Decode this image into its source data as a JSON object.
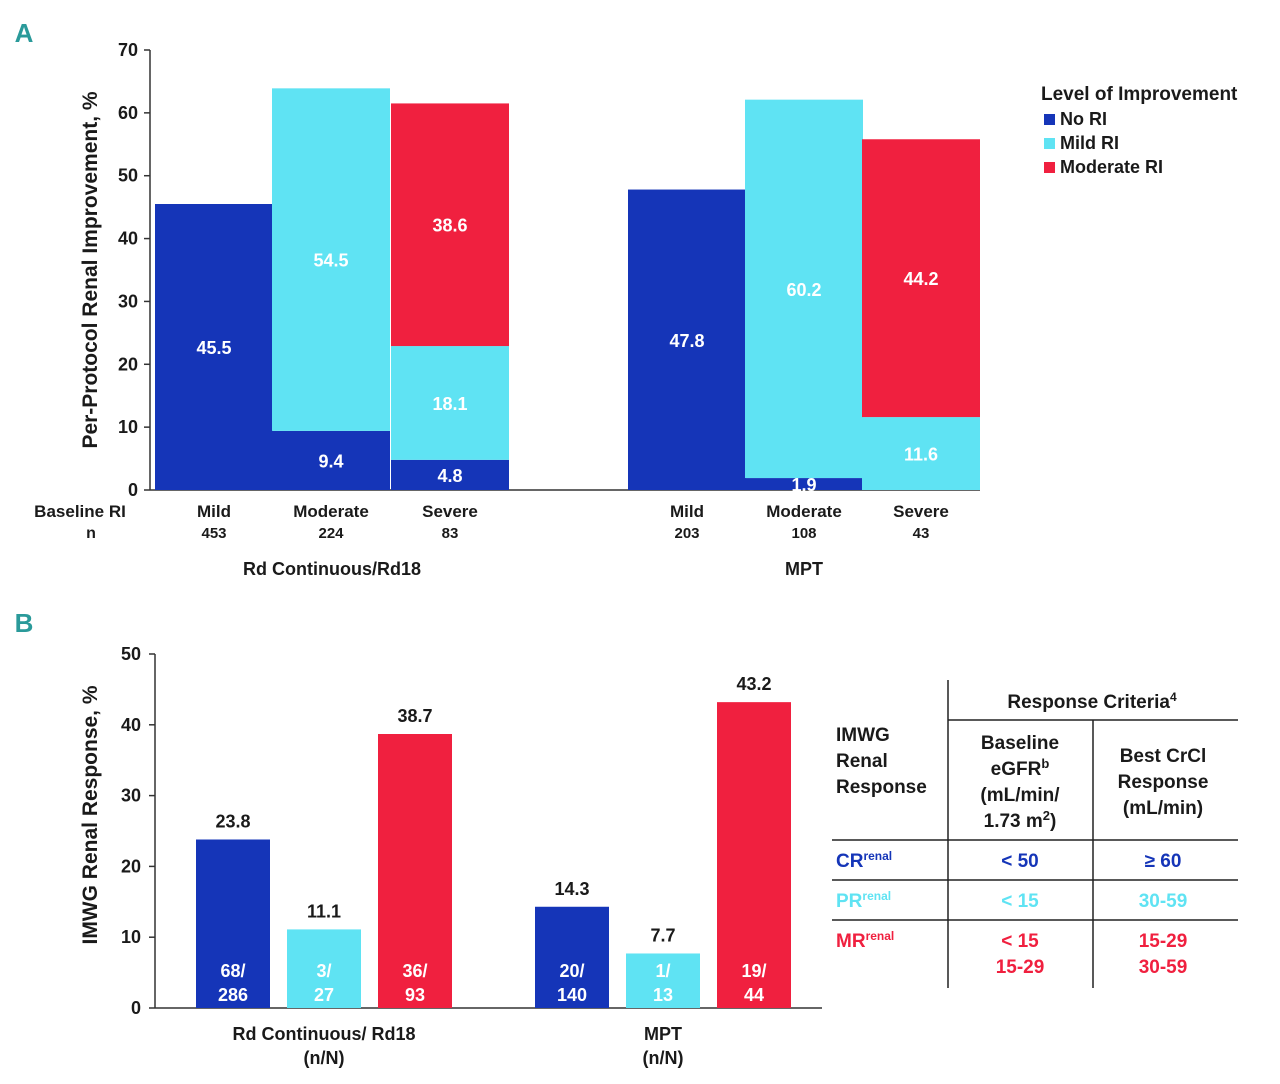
{
  "colors": {
    "no_ri": "#1535b8",
    "mild_ri": "#5fe3f3",
    "moderate_ri": "#f0203f",
    "panel_label": "#2a9a9a",
    "axis": "#333333"
  },
  "chart_data": [
    {
      "panel_label": "A",
      "type": "bar",
      "stacked": true,
      "ylabel": "Per-Protocol Renal Improvement, %",
      "ylim": [
        0,
        70
      ],
      "yticks": [
        "0",
        "10",
        "20",
        "30",
        "40",
        "50",
        "60",
        "70"
      ],
      "row_labels": {
        "baseline": "Baseline RI",
        "n": "n"
      },
      "legend": {
        "title": "Level of Improvement",
        "items": [
          "No RI",
          "Mild RI",
          "Moderate RI"
        ],
        "position": "top-right"
      },
      "groups": [
        {
          "name": "Rd Continuous/Rd18",
          "bars": [
            {
              "category": "Mild",
              "n": "453",
              "segments": [
                {
                  "series": "No RI",
                  "value": 45.5,
                  "label": "45.5"
                }
              ]
            },
            {
              "category": "Moderate",
              "n": "224",
              "segments": [
                {
                  "series": "No RI",
                  "value": 9.4,
                  "label": "9.4"
                },
                {
                  "series": "Mild RI",
                  "value": 54.5,
                  "label": "54.5"
                }
              ]
            },
            {
              "category": "Severe",
              "n": "83",
              "segments": [
                {
                  "series": "No RI",
                  "value": 4.8,
                  "label": "4.8"
                },
                {
                  "series": "Mild RI",
                  "value": 18.1,
                  "label": "18.1"
                },
                {
                  "series": "Moderate RI",
                  "value": 38.6,
                  "label": "38.6"
                }
              ]
            }
          ]
        },
        {
          "name": "MPT",
          "bars": [
            {
              "category": "Mild",
              "n": "203",
              "segments": [
                {
                  "series": "No RI",
                  "value": 47.8,
                  "label": "47.8"
                }
              ]
            },
            {
              "category": "Moderate",
              "n": "108",
              "segments": [
                {
                  "series": "No RI",
                  "value": 1.9,
                  "label": "1.9"
                },
                {
                  "series": "Mild RI",
                  "value": 60.2,
                  "label": "60.2"
                }
              ]
            },
            {
              "category": "Severe",
              "n": "43",
              "segments": [
                {
                  "series": "Mild RI",
                  "value": 11.6,
                  "label": "11.6"
                },
                {
                  "series": "Moderate RI",
                  "value": 44.2,
                  "label": "44.2"
                }
              ]
            }
          ]
        }
      ]
    },
    {
      "panel_label": "B",
      "type": "bar",
      "ylabel": "IMWG Renal Response, %",
      "ylim": [
        0,
        50
      ],
      "yticks": [
        "0",
        "10",
        "20",
        "30",
        "40",
        "50"
      ],
      "groups": [
        {
          "name": "Rd Continuous/ Rd18",
          "sub": "(n/N)",
          "bars": [
            {
              "series": "CR",
              "value": 23.8,
              "label": "23.8",
              "count": [
                "68/",
                "286"
              ]
            },
            {
              "series": "PR",
              "value": 11.1,
              "label": "11.1",
              "count": [
                "3/",
                "27"
              ]
            },
            {
              "series": "MR",
              "value": 38.7,
              "label": "38.7",
              "count": [
                "36/",
                "93"
              ]
            }
          ]
        },
        {
          "name": "MPT",
          "sub": "(n/N)",
          "bars": [
            {
              "series": "CR",
              "value": 14.3,
              "label": "14.3",
              "count": [
                "20/",
                "140"
              ]
            },
            {
              "series": "PR",
              "value": 7.7,
              "label": "7.7",
              "count": [
                "1/",
                "13"
              ]
            },
            {
              "series": "MR",
              "value": 43.2,
              "label": "43.2",
              "count": [
                "19/",
                "44"
              ]
            }
          ]
        }
      ]
    }
  ],
  "criteria_table": {
    "header_group": "Response Criteria",
    "header_group_sup": "4",
    "row_header": [
      "IMWG",
      "Renal",
      "Response"
    ],
    "col1": [
      "Baseline",
      "eGFR",
      "(mL/min/",
      "1.73 m",
      "2",
      ")"
    ],
    "col1_sup": "b",
    "col2": [
      "Best CrCl",
      "Response",
      "(mL/min)"
    ],
    "rows": [
      {
        "name": "CR",
        "sup": "renal",
        "series": "CR",
        "baseline": [
          "< 50"
        ],
        "best": [
          "≥ 60"
        ]
      },
      {
        "name": "PR",
        "sup": "renal",
        "series": "PR",
        "baseline": [
          "< 15"
        ],
        "best": [
          "30-59"
        ]
      },
      {
        "name": "MR",
        "sup": "renal",
        "series": "MR",
        "baseline": [
          "< 15",
          "15-29"
        ],
        "best": [
          "15-29",
          "30-59"
        ]
      }
    ]
  }
}
